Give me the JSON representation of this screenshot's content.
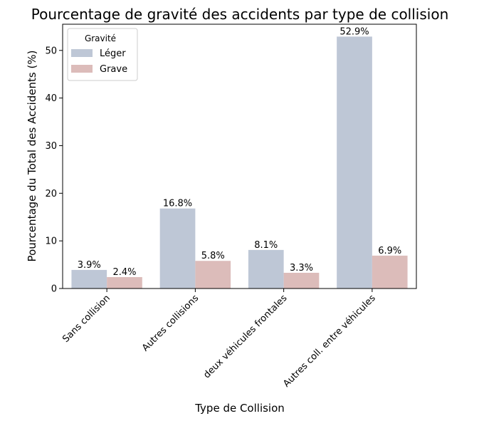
{
  "chart_data": {
    "type": "bar",
    "title": "Pourcentage de gravité des accidents par type de collision",
    "xlabel": "Type de Collision",
    "ylabel": "Pourcentage du Total des Accidents (%)",
    "categories": [
      "Sans collision",
      "Autres collisions",
      "deux véhicules frontales",
      "Autres coll. entre véhicules"
    ],
    "series": [
      {
        "name": "Léger",
        "color": "#bec7d6",
        "values": [
          3.9,
          16.8,
          8.1,
          52.9
        ],
        "labels": [
          "3.9%",
          "16.8%",
          "8.1%",
          "52.9%"
        ]
      },
      {
        "name": "Grave",
        "color": "#dcbcba",
        "values": [
          2.4,
          5.8,
          3.3,
          6.9
        ],
        "labels": [
          "2.4%",
          "5.8%",
          "3.3%",
          "6.9%"
        ]
      }
    ],
    "ylim": [
      0,
      55.5
    ],
    "yticks": [
      0,
      10,
      20,
      30,
      40,
      50
    ],
    "ytick_labels": [
      "0",
      "10",
      "20",
      "30",
      "40",
      "50"
    ],
    "legend": {
      "title": "Gravité",
      "placement": "top-left"
    },
    "grid": false
  }
}
